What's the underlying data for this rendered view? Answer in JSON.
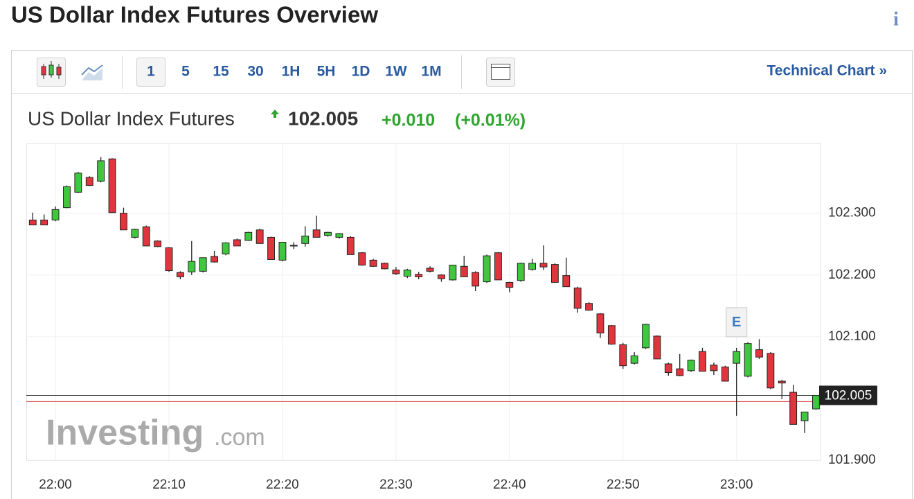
{
  "header": {
    "title": "US Dollar Index Futures Overview",
    "info": "i"
  },
  "toolbar": {
    "intervals": [
      "1",
      "5",
      "15",
      "30",
      "1H",
      "5H",
      "1D",
      "1W",
      "1M"
    ],
    "link": "Technical Chart »"
  },
  "chart_data": {
    "type": "candlestick",
    "instrument": "US Dollar Index Futures",
    "last_price": 102.005,
    "change": "+0.010",
    "change_percent": "(+0.01%)",
    "x": [
      "21:58",
      "21:59",
      "22:00",
      "22:01",
      "22:02",
      "22:03",
      "22:04",
      "22:05",
      "22:06",
      "22:07",
      "22:08",
      "22:09",
      "22:10",
      "22:11",
      "22:12",
      "22:13",
      "22:14",
      "22:15",
      "22:16",
      "22:17",
      "22:18",
      "22:19",
      "22:20",
      "22:21",
      "22:22",
      "22:23",
      "22:24",
      "22:25",
      "22:26",
      "22:27",
      "22:28",
      "22:29",
      "22:30",
      "22:31",
      "22:32",
      "22:33",
      "22:34",
      "22:35",
      "22:36",
      "22:37",
      "22:38",
      "22:39",
      "22:40",
      "22:41",
      "22:42",
      "22:43",
      "22:44",
      "22:45",
      "22:46",
      "22:47",
      "22:48",
      "22:49",
      "22:50",
      "22:51",
      "22:52",
      "22:53",
      "22:54",
      "22:55",
      "22:56",
      "22:57",
      "22:58",
      "22:59",
      "23:00",
      "23:01",
      "23:02",
      "23:03",
      "23:04",
      "23:05",
      "23:06",
      "23:07"
    ],
    "open": [
      102.289,
      102.289,
      102.289,
      102.309,
      102.334,
      102.358,
      102.352,
      102.388,
      102.3,
      102.261,
      102.278,
      102.255,
      102.244,
      102.204,
      102.205,
      102.206,
      102.23,
      102.234,
      102.257,
      102.256,
      102.273,
      102.261,
      102.224,
      102.247,
      102.251,
      102.273,
      102.264,
      102.261,
      102.261,
      102.236,
      102.224,
      102.219,
      102.208,
      102.198,
      102.201,
      102.211,
      102.2,
      102.192,
      102.214,
      102.204,
      102.189,
      102.236,
      102.188,
      102.191,
      102.209,
      102.219,
      102.217,
      102.199,
      102.179,
      102.154,
      102.137,
      102.118,
      102.087,
      102.057,
      102.082,
      102.101,
      102.056,
      102.048,
      102.045,
      102.076,
      102.054,
      102.051,
      102.057,
      102.036,
      102.079,
      102.073,
      102.028,
      102.01,
      101.964,
      101.983
    ],
    "high": [
      102.301,
      102.298,
      102.311,
      102.345,
      102.367,
      102.36,
      102.391,
      102.389,
      102.309,
      102.275,
      102.28,
      102.256,
      102.245,
      102.206,
      102.255,
      102.228,
      102.239,
      102.253,
      102.259,
      102.27,
      102.275,
      102.262,
      102.253,
      102.253,
      102.279,
      102.296,
      102.27,
      102.268,
      102.263,
      102.237,
      102.226,
      102.22,
      102.213,
      102.21,
      102.205,
      102.214,
      102.201,
      102.216,
      102.231,
      102.206,
      102.233,
      102.237,
      102.189,
      102.22,
      102.226,
      102.248,
      102.219,
      102.228,
      102.181,
      102.156,
      102.138,
      102.119,
      102.09,
      102.075,
      102.121,
      102.102,
      102.058,
      102.072,
      102.063,
      102.082,
      102.058,
      102.053,
      102.082,
      102.091,
      102.096,
      102.075,
      102.03,
      102.022,
      101.978,
      102.005
    ],
    "low": [
      102.281,
      102.281,
      102.287,
      102.308,
      102.333,
      102.344,
      102.35,
      102.301,
      102.273,
      102.259,
      102.247,
      102.245,
      102.205,
      102.193,
      102.2,
      102.204,
      102.22,
      102.232,
      102.247,
      102.255,
      102.251,
      102.225,
      102.222,
      102.242,
      102.246,
      102.261,
      102.262,
      102.259,
      102.233,
      102.215,
      102.213,
      102.209,
      102.2,
      102.195,
      102.193,
      102.204,
      102.189,
      102.191,
      102.197,
      102.174,
      102.187,
      102.192,
      102.172,
      102.189,
      102.207,
      102.208,
      102.188,
      102.181,
      102.139,
      102.142,
      102.098,
      102.087,
      102.048,
      102.055,
      102.08,
      102.064,
      102.037,
      102.036,
      102.043,
      102.044,
      102.038,
      102.028,
      101.972,
      102.034,
      102.064,
      102.015,
      101.999,
      101.958,
      101.944,
      101.982
    ],
    "close": [
      102.281,
      102.281,
      102.306,
      102.343,
      102.365,
      102.345,
      102.385,
      102.301,
      102.273,
      102.274,
      102.247,
      102.246,
      102.207,
      102.197,
      102.222,
      102.228,
      102.221,
      102.252,
      102.247,
      102.269,
      102.251,
      102.225,
      102.253,
      102.248,
      102.263,
      102.261,
      102.269,
      102.267,
      102.233,
      102.216,
      102.214,
      102.21,
      102.202,
      102.208,
      102.197,
      102.206,
      102.194,
      102.216,
      102.197,
      102.182,
      102.231,
      102.192,
      102.18,
      102.219,
      102.219,
      102.213,
      102.188,
      102.181,
      102.146,
      102.143,
      102.106,
      102.088,
      102.053,
      102.069,
      102.12,
      102.064,
      102.042,
      102.037,
      102.062,
      102.044,
      102.045,
      102.028,
      102.076,
      102.089,
      102.067,
      102.017,
      102.025,
      101.958,
      101.978,
      102.005
    ],
    "up_color": "#3fc73f",
    "down_color": "#e1353d",
    "previous_close": 101.995,
    "xlim": [
      "21:57:26",
      "23:07:24"
    ],
    "xticks": [
      "22:00",
      "22:10",
      "22:20",
      "22:30",
      "22:40",
      "22:50",
      "23:00"
    ],
    "ylim": [
      101.9,
      102.413
    ],
    "yticks": [
      {
        "value": 101.9,
        "label": "101.900"
      },
      {
        "value": 102.1,
        "label": "102.100"
      },
      {
        "value": 102.2,
        "label": "102.200"
      },
      {
        "value": 102.3,
        "label": "102.300"
      }
    ],
    "grid": true,
    "event": {
      "x": "23:00",
      "label": "E"
    },
    "watermark": {
      "brand": "Investing",
      "suffix": ".com"
    }
  }
}
